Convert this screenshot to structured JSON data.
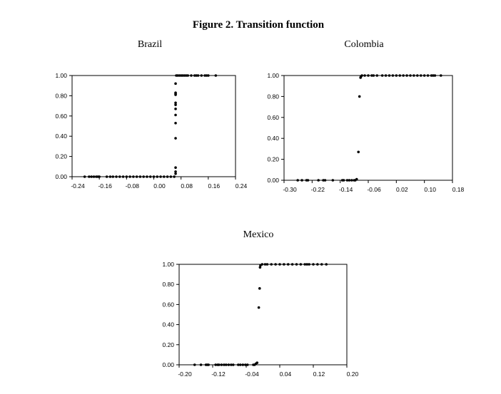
{
  "figure_title": "Figure 2. Transition function",
  "chart_data": [
    {
      "type": "scatter",
      "title": "Brazil",
      "xlim": [
        -0.24,
        0.24
      ],
      "ylim": [
        0,
        1
      ],
      "xticks": [
        "-0.24",
        "-0.16",
        "-0.08",
        "0.00",
        "0.08",
        "0.16",
        "0.24"
      ],
      "xtick_values": [
        -0.24,
        -0.16,
        -0.08,
        0.0,
        0.08,
        0.16,
        0.24
      ],
      "yticks": [
        "0.00",
        "0.20",
        "0.40",
        "0.60",
        "0.80",
        "1.00"
      ],
      "ytick_values": [
        0,
        0.2,
        0.4,
        0.6,
        0.8,
        1.0
      ],
      "grid": false,
      "points": [
        [
          -0.203,
          0
        ],
        [
          -0.19,
          0
        ],
        [
          -0.183,
          0
        ],
        [
          -0.176,
          0
        ],
        [
          -0.169,
          0
        ],
        [
          -0.164,
          0
        ],
        [
          -0.16,
          0
        ],
        [
          -0.138,
          0
        ],
        [
          -0.128,
          0
        ],
        [
          -0.12,
          0
        ],
        [
          -0.11,
          0
        ],
        [
          -0.1,
          0
        ],
        [
          -0.09,
          0
        ],
        [
          -0.08,
          0
        ],
        [
          -0.07,
          0
        ],
        [
          -0.06,
          0
        ],
        [
          -0.05,
          0
        ],
        [
          -0.04,
          0
        ],
        [
          -0.03,
          0
        ],
        [
          -0.02,
          0
        ],
        [
          -0.01,
          0
        ],
        [
          0.0,
          0
        ],
        [
          0.01,
          0
        ],
        [
          0.02,
          0
        ],
        [
          0.03,
          0
        ],
        [
          0.04,
          0
        ],
        [
          0.05,
          0
        ],
        [
          0.06,
          0
        ],
        [
          0.064,
          0.03
        ],
        [
          0.064,
          0.05
        ],
        [
          0.064,
          0.09
        ],
        [
          0.064,
          0.38
        ],
        [
          0.064,
          0.53
        ],
        [
          0.064,
          0.61
        ],
        [
          0.064,
          0.67
        ],
        [
          0.064,
          0.71
        ],
        [
          0.064,
          0.73
        ],
        [
          0.064,
          0.81
        ],
        [
          0.064,
          0.82
        ],
        [
          0.064,
          0.83
        ],
        [
          0.064,
          0.92
        ],
        [
          0.066,
          1
        ],
        [
          0.07,
          1
        ],
        [
          0.075,
          1
        ],
        [
          0.08,
          1
        ],
        [
          0.085,
          1
        ],
        [
          0.09,
          1
        ],
        [
          0.095,
          1
        ],
        [
          0.1,
          1
        ],
        [
          0.11,
          1
        ],
        [
          0.12,
          1
        ],
        [
          0.125,
          1
        ],
        [
          0.13,
          1
        ],
        [
          0.14,
          1
        ],
        [
          0.15,
          1
        ],
        [
          0.155,
          1
        ],
        [
          0.16,
          1
        ],
        [
          0.182,
          1
        ]
      ]
    },
    {
      "type": "scatter",
      "title": "Colombia",
      "xlim": [
        -0.3,
        0.18
      ],
      "ylim": [
        0,
        1
      ],
      "xticks": [
        "-0.30",
        "-0.22",
        "-0.14",
        "-0.06",
        "0.02",
        "0.10",
        "0.18"
      ],
      "xtick_values": [
        -0.3,
        -0.22,
        -0.14,
        -0.06,
        0.02,
        0.1,
        0.18
      ],
      "yticks": [
        "0.00",
        "0.20",
        "0.40",
        "0.60",
        "0.80",
        "1.00"
      ],
      "ytick_values": [
        0,
        0.2,
        0.4,
        0.6,
        0.8,
        1.0
      ],
      "grid": false,
      "points": [
        [
          -0.261,
          0
        ],
        [
          -0.249,
          0
        ],
        [
          -0.236,
          0
        ],
        [
          -0.232,
          0
        ],
        [
          -0.202,
          0
        ],
        [
          -0.188,
          0
        ],
        [
          -0.183,
          0
        ],
        [
          -0.161,
          0
        ],
        [
          -0.134,
          0
        ],
        [
          -0.13,
          0
        ],
        [
          -0.12,
          0
        ],
        [
          -0.114,
          0
        ],
        [
          -0.107,
          0
        ],
        [
          -0.1,
          0
        ],
        [
          -0.097,
          0
        ],
        [
          -0.093,
          0.01
        ],
        [
          -0.088,
          0.27
        ],
        [
          -0.085,
          0.8
        ],
        [
          -0.082,
          0.98
        ],
        [
          -0.081,
          0.99
        ],
        [
          -0.078,
          1
        ],
        [
          -0.07,
          1
        ],
        [
          -0.06,
          1
        ],
        [
          -0.05,
          1
        ],
        [
          -0.045,
          1
        ],
        [
          -0.035,
          1
        ],
        [
          -0.02,
          1
        ],
        [
          -0.01,
          1
        ],
        [
          0.0,
          1
        ],
        [
          0.01,
          1
        ],
        [
          0.02,
          1
        ],
        [
          0.03,
          1
        ],
        [
          0.04,
          1
        ],
        [
          0.05,
          1
        ],
        [
          0.06,
          1
        ],
        [
          0.07,
          1
        ],
        [
          0.08,
          1
        ],
        [
          0.09,
          1
        ],
        [
          0.1,
          1
        ],
        [
          0.11,
          1
        ],
        [
          0.12,
          1
        ],
        [
          0.125,
          1
        ],
        [
          0.13,
          1
        ],
        [
          0.147,
          1
        ]
      ]
    },
    {
      "type": "scatter",
      "title": "Mexico",
      "xlim": [
        -0.2,
        0.2
      ],
      "ylim": [
        0,
        1
      ],
      "xticks": [
        "-0.20",
        "-0.12",
        "-0.04",
        "0.04",
        "0.12",
        "0.20"
      ],
      "xtick_values": [
        -0.2,
        -0.12,
        -0.04,
        0.04,
        0.12,
        0.2
      ],
      "yticks": [
        "0.00",
        "0.20",
        "0.40",
        "0.60",
        "0.80",
        "1.00"
      ],
      "ytick_values": [
        0,
        0.2,
        0.4,
        0.6,
        0.8,
        1.0
      ],
      "grid": false,
      "points": [
        [
          -0.163,
          0
        ],
        [
          -0.148,
          0
        ],
        [
          -0.136,
          0
        ],
        [
          -0.133,
          0
        ],
        [
          -0.13,
          0
        ],
        [
          -0.113,
          0
        ],
        [
          -0.108,
          0
        ],
        [
          -0.105,
          0
        ],
        [
          -0.099,
          0
        ],
        [
          -0.093,
          0
        ],
        [
          -0.088,
          0
        ],
        [
          -0.082,
          0
        ],
        [
          -0.076,
          0
        ],
        [
          -0.071,
          0
        ],
        [
          -0.059,
          0
        ],
        [
          -0.054,
          0
        ],
        [
          -0.048,
          0
        ],
        [
          -0.042,
          0
        ],
        [
          -0.037,
          0
        ],
        [
          -0.023,
          0
        ],
        [
          -0.02,
          0
        ],
        [
          -0.017,
          0.01
        ],
        [
          -0.014,
          0.02
        ],
        [
          -0.01,
          0.57
        ],
        [
          -0.008,
          0.76
        ],
        [
          -0.007,
          0.97
        ],
        [
          -0.006,
          0.99
        ],
        [
          -0.002,
          1
        ],
        [
          0.005,
          1
        ],
        [
          0.01,
          1
        ],
        [
          0.02,
          1
        ],
        [
          0.03,
          1
        ],
        [
          0.04,
          1
        ],
        [
          0.05,
          1
        ],
        [
          0.06,
          1
        ],
        [
          0.07,
          1
        ],
        [
          0.08,
          1
        ],
        [
          0.09,
          1
        ],
        [
          0.1,
          1
        ],
        [
          0.105,
          1
        ],
        [
          0.11,
          1
        ],
        [
          0.12,
          1
        ],
        [
          0.13,
          1
        ],
        [
          0.14,
          1
        ],
        [
          0.151,
          1
        ]
      ]
    }
  ]
}
